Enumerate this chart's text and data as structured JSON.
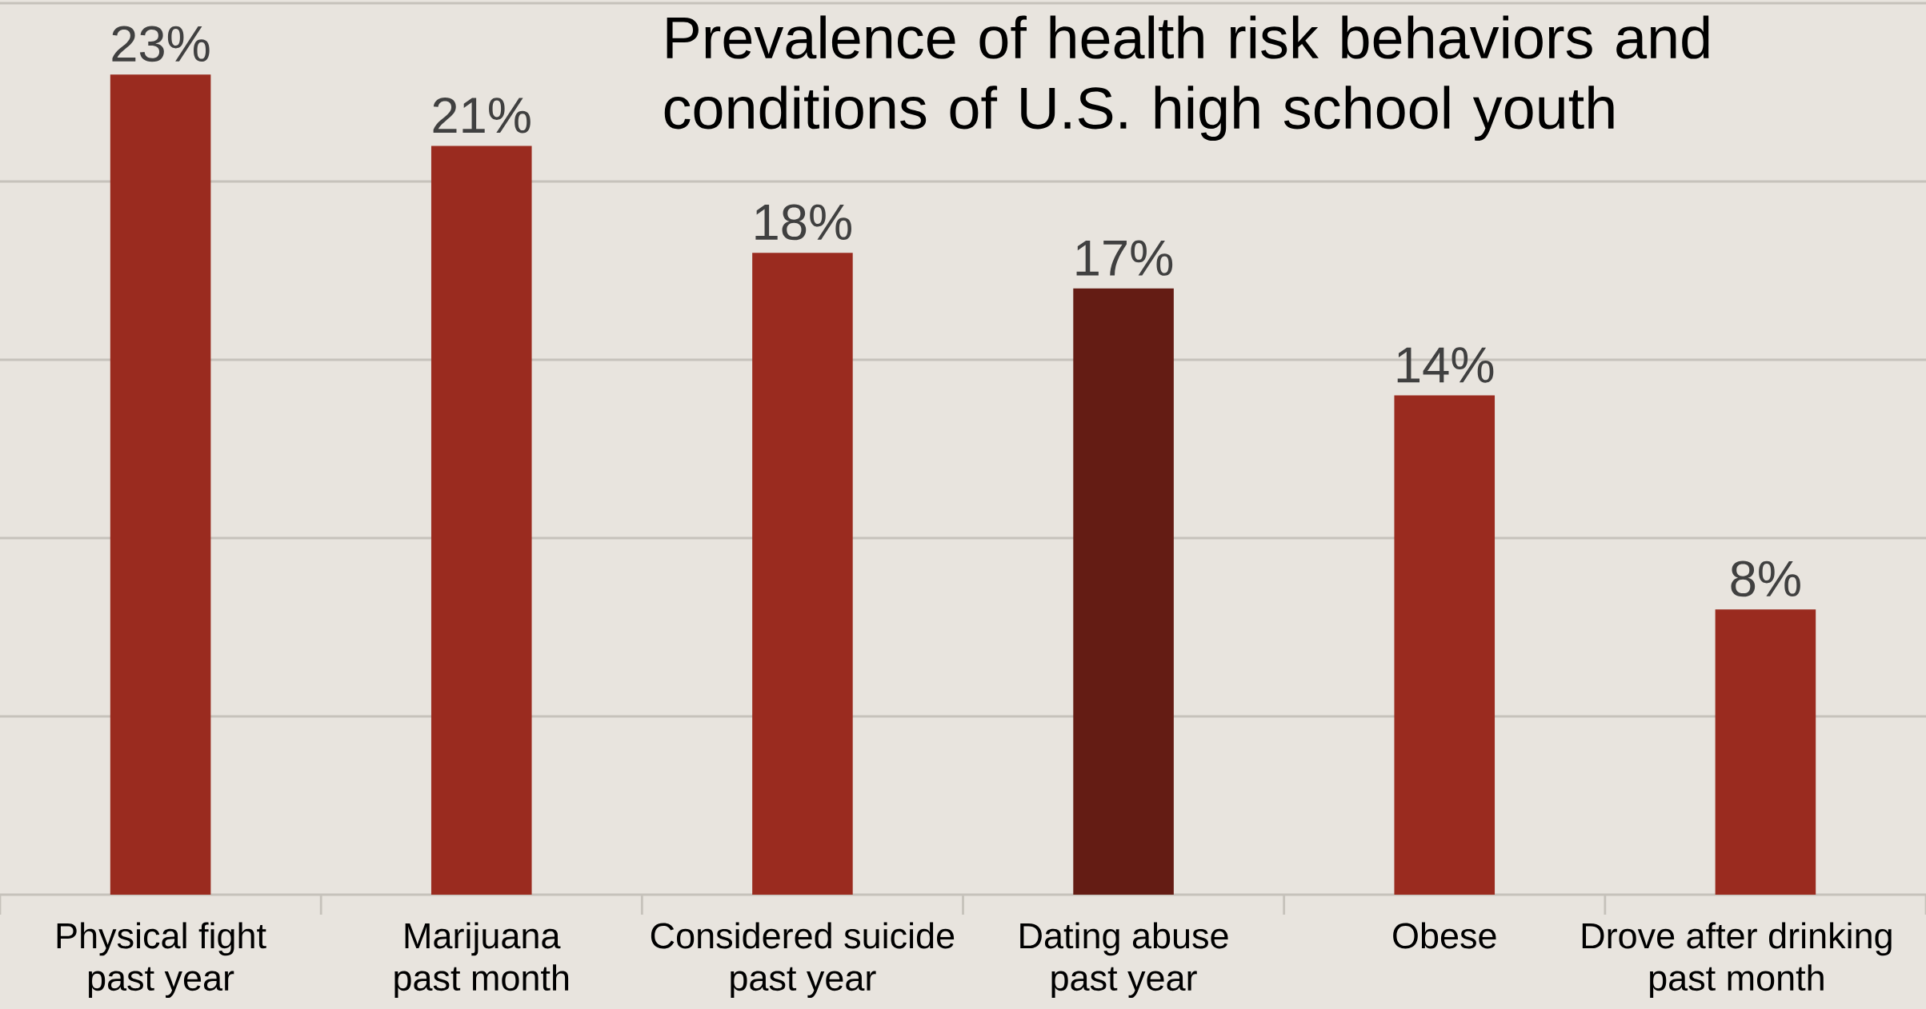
{
  "chart_data": {
    "type": "bar",
    "title": "Prevalence of health risk behaviors and conditions of U.S. high school youth",
    "categories": [
      "Physical fight past year",
      "Marijuana past month",
      "Considered suicide past year",
      "Dating abuse past year",
      "Obese",
      "Drove after drinking past month"
    ],
    "values": [
      23,
      21,
      18,
      17,
      14,
      8
    ],
    "value_labels": [
      "23%",
      "21%",
      "18%",
      "17%",
      "14%",
      "8%"
    ],
    "colors": [
      "#9a2b1f",
      "#9a2b1f",
      "#9a2b1f",
      "#641c14",
      "#9a2b1f",
      "#9a2b1f"
    ],
    "ylim": [
      0,
      25
    ],
    "yticks": [
      {
        "value": 0,
        "label": null
      },
      {
        "value": 5,
        "label": null
      },
      {
        "value": 10,
        "label": null
      },
      {
        "value": 15,
        "label": null
      },
      {
        "value": 20,
        "label": null
      },
      {
        "value": 25,
        "label": null
      }
    ],
    "grid": "y",
    "tick_labels": "x"
  }
}
